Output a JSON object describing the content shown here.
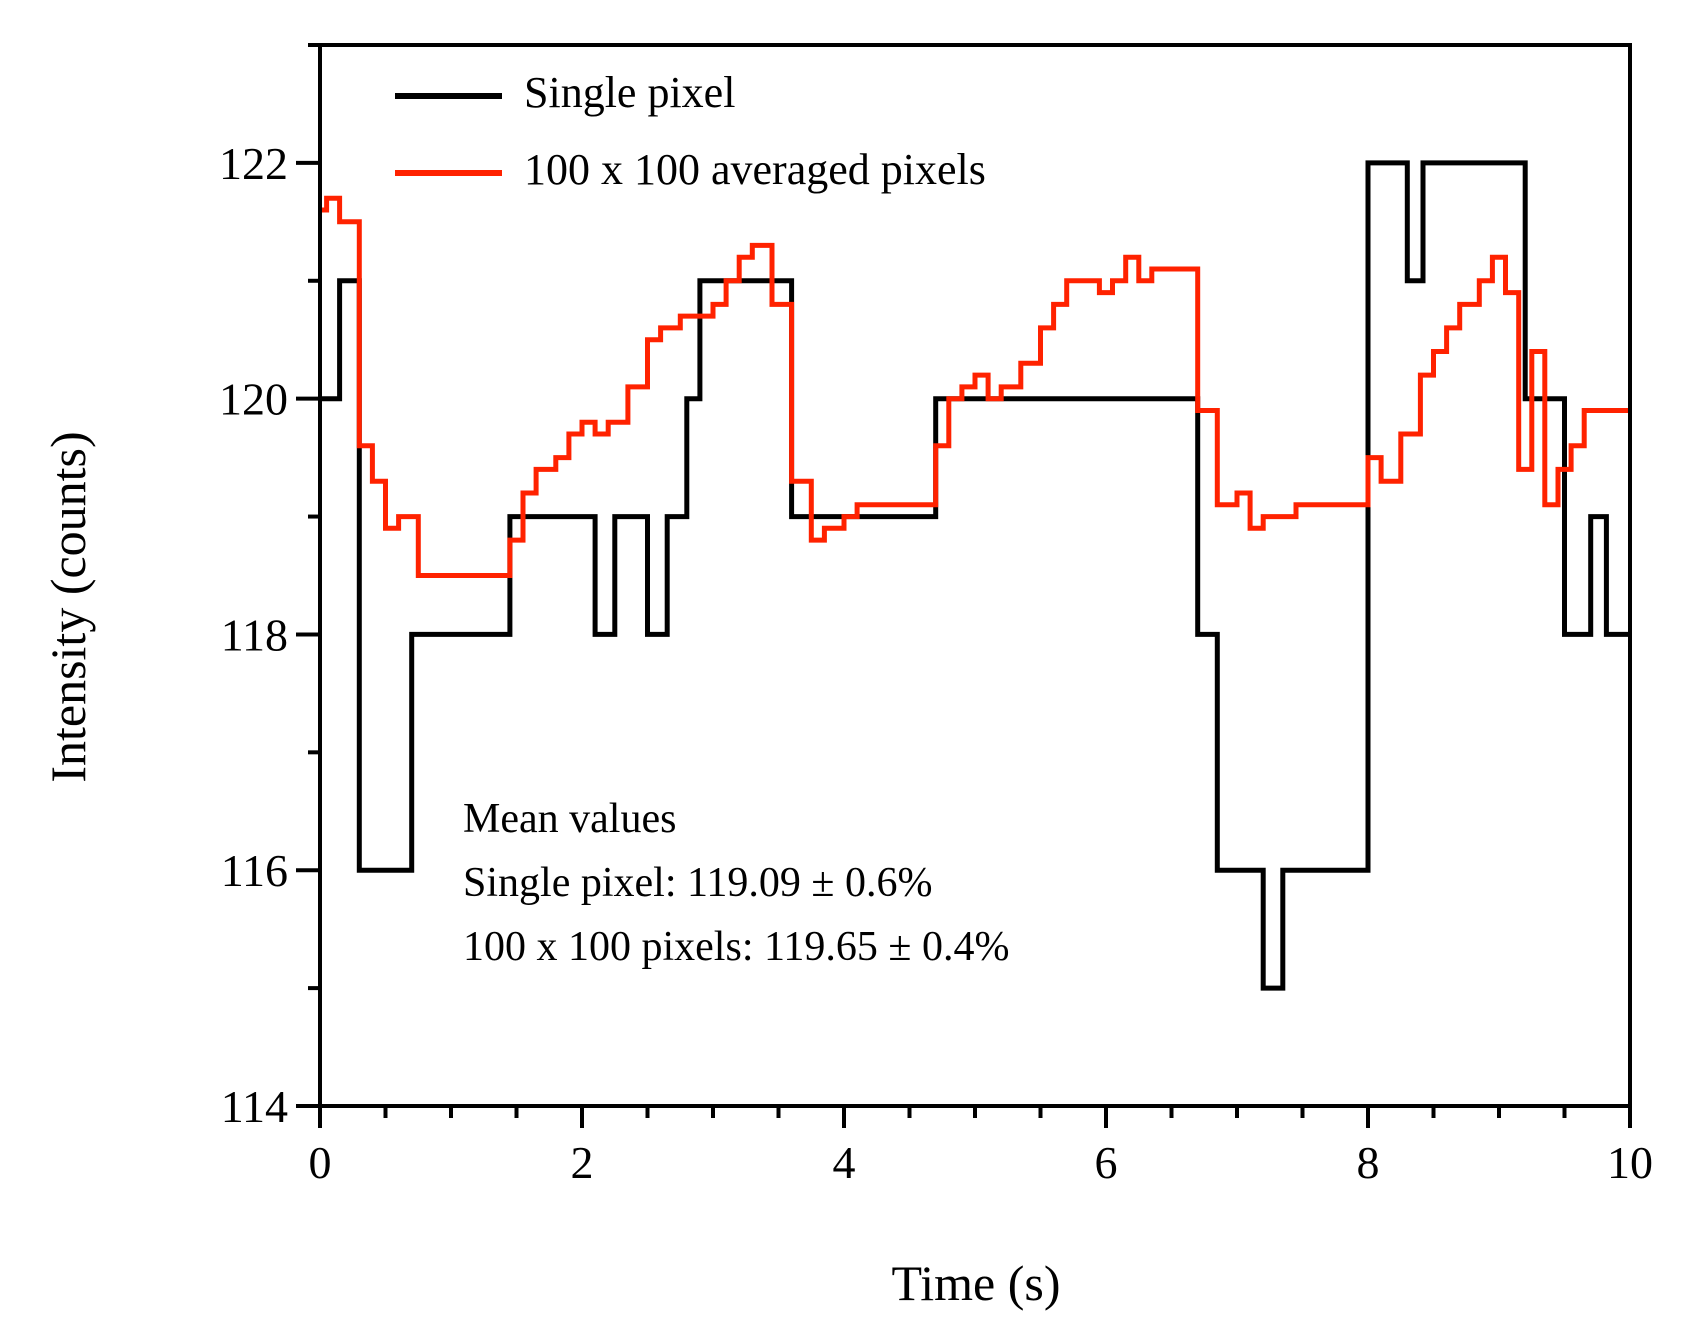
{
  "chart_data": {
    "type": "line",
    "title": "",
    "xlabel": "Time (s)",
    "ylabel": "Intensity (counts)",
    "xlim": [
      0,
      10
    ],
    "ylim": [
      114,
      123
    ],
    "xticks": [
      0,
      2,
      4,
      6,
      8,
      10
    ],
    "yticks": [
      114,
      116,
      118,
      120,
      122
    ],
    "xtick_labels": [
      "0",
      "2",
      "4",
      "6",
      "8",
      "10"
    ],
    "ytick_labels": [
      "114",
      "116",
      "118",
      "120",
      "122"
    ],
    "grid": false,
    "legend_position": "top-left",
    "series": [
      {
        "name": "Single pixel",
        "color": "#000000",
        "step": "post",
        "x": [
          0,
          0.15,
          0.3,
          0.7,
          1.0,
          1.45,
          1.8,
          2.1,
          2.25,
          2.5,
          2.65,
          2.8,
          2.9,
          3.0,
          3.3,
          3.6,
          4.0,
          4.4,
          4.7,
          5.0,
          5.5,
          6.0,
          6.5,
          6.7,
          6.85,
          7.0,
          7.2,
          7.35,
          7.7,
          8.0,
          8.3,
          8.42,
          8.6,
          9.0,
          9.08,
          9.2,
          9.5,
          9.7,
          9.82,
          10.0
        ],
        "y": [
          120,
          121,
          116,
          118,
          118,
          119,
          119,
          118,
          119,
          118,
          119,
          120,
          121,
          121,
          121,
          119,
          119,
          119,
          120,
          120,
          120,
          120,
          120,
          118,
          116,
          116,
          115,
          116,
          116,
          122,
          121,
          122,
          122,
          122,
          122,
          120,
          118,
          119,
          118,
          118
        ]
      },
      {
        "name": "100 x 100 averaged pixels",
        "color": "#ff2200",
        "step": "post",
        "x": [
          0,
          0.05,
          0.15,
          0.3,
          0.4,
          0.5,
          0.6,
          0.75,
          0.85,
          1.0,
          1.45,
          1.55,
          1.65,
          1.8,
          1.9,
          2.0,
          2.1,
          2.2,
          2.35,
          2.5,
          2.6,
          2.75,
          2.85,
          3.0,
          3.1,
          3.2,
          3.3,
          3.45,
          3.6,
          3.75,
          3.85,
          4.0,
          4.1,
          4.3,
          4.7,
          4.8,
          4.9,
          5.0,
          5.1,
          5.2,
          5.35,
          5.5,
          5.6,
          5.7,
          5.85,
          5.95,
          6.05,
          6.15,
          6.25,
          6.35,
          6.45,
          6.55,
          6.7,
          6.85,
          7.0,
          7.1,
          7.2,
          7.3,
          7.45,
          7.6,
          8.0,
          8.1,
          8.25,
          8.4,
          8.5,
          8.6,
          8.7,
          8.85,
          8.95,
          9.05,
          9.15,
          9.25,
          9.35,
          9.45,
          9.55,
          9.65,
          9.8,
          9.9,
          10.0
        ],
        "y": [
          121.6,
          121.7,
          121.5,
          119.6,
          119.3,
          118.9,
          119.0,
          118.5,
          118.5,
          118.5,
          118.8,
          119.2,
          119.4,
          119.5,
          119.7,
          119.8,
          119.7,
          119.8,
          120.1,
          120.5,
          120.6,
          120.7,
          120.7,
          120.8,
          121.0,
          121.2,
          121.3,
          120.8,
          119.3,
          118.8,
          118.9,
          119.0,
          119.1,
          119.1,
          119.6,
          120.0,
          120.1,
          120.2,
          120.0,
          120.1,
          120.3,
          120.6,
          120.8,
          121.0,
          121.0,
          120.9,
          121.0,
          121.2,
          121.0,
          121.1,
          121.1,
          121.1,
          119.9,
          119.1,
          119.2,
          118.9,
          119.0,
          119.0,
          119.1,
          119.1,
          119.5,
          119.3,
          119.7,
          120.2,
          120.4,
          120.6,
          120.8,
          121.0,
          121.2,
          120.9,
          119.4,
          120.4,
          119.1,
          119.4,
          119.6,
          119.9,
          119.9,
          119.9,
          119.9
        ]
      }
    ],
    "annotations": {
      "heading": "Mean values",
      "line1": "Single pixel: 119.09 ± 0.6%",
      "line2": "100 x 100 pixels: 119.65 ± 0.4%"
    }
  }
}
